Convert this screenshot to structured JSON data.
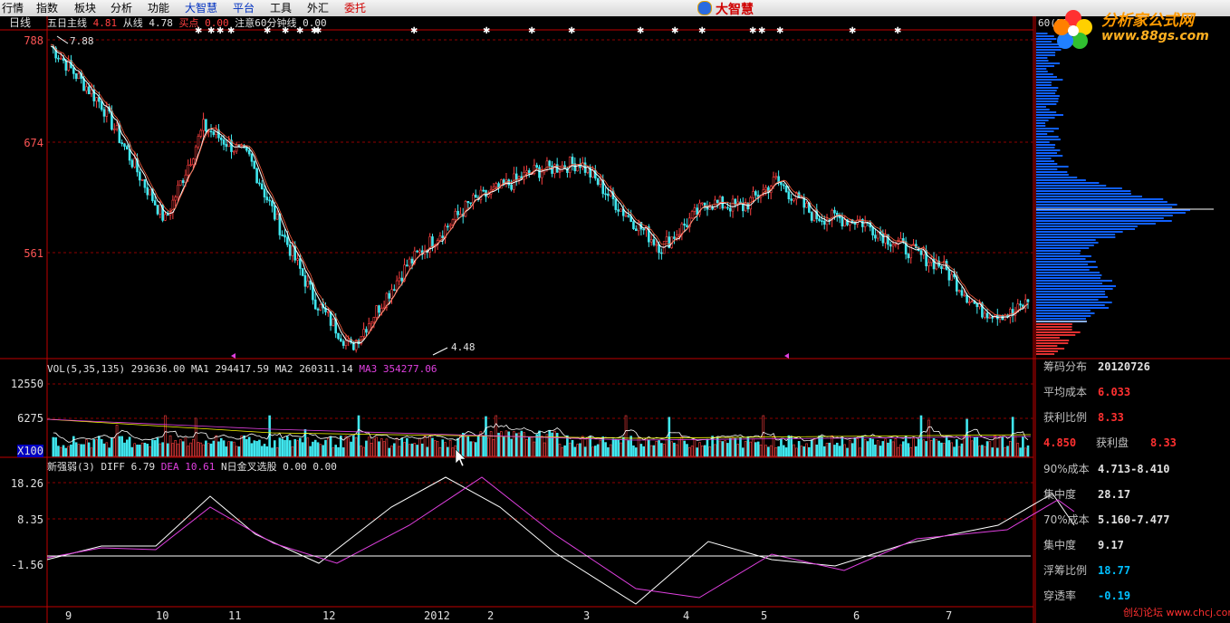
{
  "menu": [
    {
      "label": "行情",
      "hot": false
    },
    {
      "label": "指数",
      "hot": false
    },
    {
      "label": "板块",
      "hot": false
    },
    {
      "label": "分析",
      "hot": false
    },
    {
      "label": "功能",
      "hot": false
    },
    {
      "label": "大智慧",
      "hot": "blue"
    },
    {
      "label": "平台",
      "hot": "blue"
    },
    {
      "label": "工具",
      "hot": false
    },
    {
      "label": "外汇",
      "hot": false
    },
    {
      "label": "委托",
      "hot": true
    }
  ],
  "app_logo": "大智慧",
  "period": "日线",
  "legend_line": {
    "a": "五日主线",
    "av": "4.81",
    "b": "从线",
    "bv": "4.78",
    "c": "买点",
    "cv": "0.00",
    "d": "注意60分钟线",
    "dv": "0.00"
  },
  "price_axis": [
    "788",
    "674",
    "561"
  ],
  "price_hi": "7.88",
  "price_lo": "4.48",
  "vol_header": {
    "name": "VOL(5,35,135)",
    "v": "293636.00",
    "ma1": "MA1",
    "ma1v": "294417.59",
    "ma2": "MA2",
    "ma2v": "260311.14",
    "ma3": "MA3",
    "ma3v": "354277.06"
  },
  "vol_axis": [
    "12550",
    "6275",
    "X100"
  ],
  "macd_header": {
    "name": "新强弱(3)",
    "diff": "DIFF",
    "diffv": "6.79",
    "dea": "DEA",
    "deav": "10.61",
    "n": "N日金叉选股",
    "nv": "0.00",
    "nv2": "0.00"
  },
  "macd_axis": [
    "18.26",
    "8.35",
    "-1.56"
  ],
  "x_labels": [
    "9",
    "10",
    "11",
    "12",
    "2012",
    "2",
    "3",
    "4",
    "5",
    "6",
    "7"
  ],
  "chip_label": "60(989)",
  "brand": {
    "name": "分析家公式网",
    "url": "www.88gs.com"
  },
  "chips": [
    {
      "k": "筹码分布",
      "v": "20120726",
      "c": "#e0e0e0"
    },
    {
      "k": "平均成本",
      "v": "6.033",
      "c": "#ff3030"
    },
    {
      "k": "获利比例",
      "v": "8.33",
      "c": "#ff3030"
    },
    {
      "k": "4.850",
      "v": "8.33",
      "mid": "获利盘",
      "c": "#ff3030"
    },
    {
      "k": "90%成本",
      "v": "4.713-8.410",
      "c": "#e0e0e0"
    },
    {
      "k": "集中度",
      "v": "28.17",
      "c": "#e0e0e0"
    },
    {
      "k": "70%成本",
      "v": "5.160-7.477",
      "c": "#e0e0e0"
    },
    {
      "k": "集中度",
      "v": "9.17",
      "c": "#e0e0e0"
    },
    {
      "k": "浮筹比例",
      "v": "18.77",
      "c": "#00c0ff"
    },
    {
      "k": "穿透率",
      "v": "-0.19",
      "c": "#00c0ff"
    }
  ],
  "watermark": "创幻论坛 www.chcj.com",
  "colors": {
    "up": "#ff4040",
    "down": "#40e8f0",
    "ma": "#ffffff",
    "axis": "#c00000",
    "dea": "#e040e0"
  }
}
